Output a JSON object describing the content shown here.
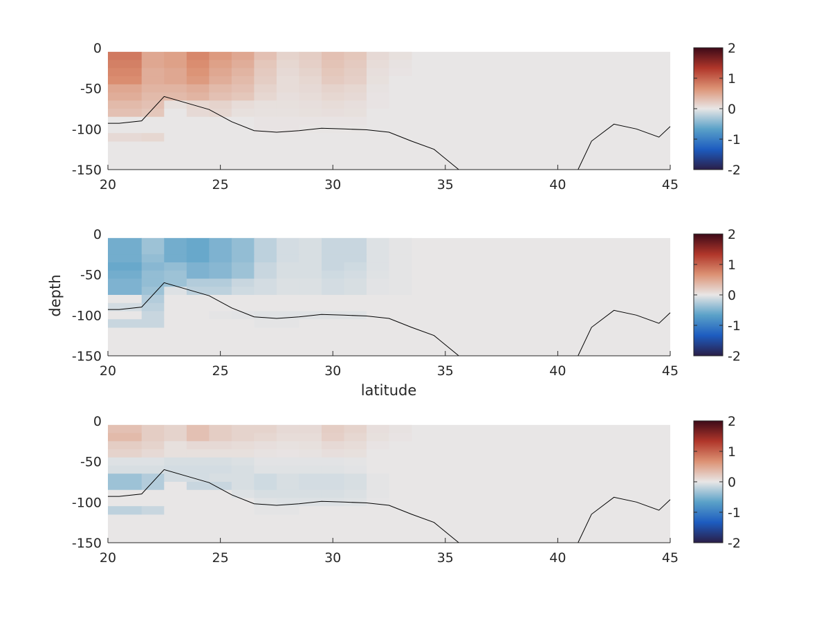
{
  "figure": {
    "xlabel": "latitude",
    "ylabel": "depth"
  },
  "colors": {
    "colormap_stops": [
      "#2a1e48",
      "#1d5cc0",
      "#5aa1c8",
      "#e8e6e6",
      "#dc9274",
      "#b0362a",
      "#3d0a18"
    ],
    "bathymetry_line": "#000000",
    "axis_text": "#262626"
  },
  "chart_data": [
    {
      "type": "heatmap",
      "title": "",
      "xlabel": "",
      "ylabel": "",
      "xlim": [
        20,
        45
      ],
      "ylim": [
        -150,
        0
      ],
      "x_ticks": [
        "20",
        "25",
        "30",
        "35",
        "40",
        "45"
      ],
      "y_ticks": [
        "0",
        "-50",
        "-100",
        "-150"
      ],
      "colorbar": {
        "range": [
          -2,
          2
        ],
        "ticks": [
          "2",
          "1",
          "0",
          "-1",
          "-2"
        ]
      },
      "grid": false,
      "lat_edges": [
        19.5,
        21.5,
        22.5,
        23.5,
        24.5,
        25.5,
        26.5,
        27.5,
        28.5,
        29.5,
        30.5,
        31.5,
        32.5,
        33.5
      ],
      "depth_edges": [
        -5,
        -15,
        -25,
        -35,
        -45,
        -55,
        -65,
        -75,
        -85,
        -95,
        -105,
        -115
      ],
      "values": [
        [
          0.85,
          0.5,
          0.55,
          0.75,
          0.6,
          0.5,
          0.3,
          0.15,
          0.2,
          0.3,
          0.25,
          0.1,
          0.05
        ],
        [
          0.8,
          0.5,
          0.55,
          0.7,
          0.55,
          0.45,
          0.25,
          0.12,
          0.18,
          0.28,
          0.22,
          0.08,
          0.03
        ],
        [
          0.75,
          0.45,
          0.5,
          0.65,
          0.5,
          0.4,
          0.22,
          0.1,
          0.15,
          0.25,
          0.2,
          0.06,
          0.02
        ],
        [
          0.7,
          0.45,
          0.5,
          0.6,
          0.45,
          0.35,
          0.2,
          0.08,
          0.12,
          0.22,
          0.18,
          0.05,
          0.0
        ],
        [
          0.5,
          0.4,
          0.4,
          0.45,
          0.35,
          0.3,
          0.15,
          0.08,
          0.1,
          0.15,
          0.12,
          0.03,
          0.0
        ],
        [
          0.45,
          0.35,
          0.35,
          0.4,
          0.3,
          0.25,
          0.12,
          0.06,
          0.08,
          0.12,
          0.1,
          0.02,
          0.0
        ],
        [
          0.35,
          0.3,
          0.05,
          0.12,
          0.15,
          0.08,
          0.05,
          0.05,
          0.06,
          0.08,
          0.06,
          0.02,
          0.0
        ],
        [
          0.3,
          0.25,
          0.0,
          0.1,
          0.12,
          0.05,
          0.04,
          0.04,
          0.05,
          0.06,
          0.05,
          0.0,
          0.0
        ],
        [
          0.0,
          0.0,
          0.0,
          0.0,
          0.0,
          0.0,
          0.02,
          0.02,
          0.02,
          0.02,
          0.02,
          0.0,
          0.0
        ],
        [
          0.0,
          0.0,
          0.0,
          0.0,
          0.0,
          0.0,
          0.02,
          0.02,
          0.01,
          0.01,
          0.01,
          0.0,
          0.0
        ],
        [
          0.1,
          0.12,
          0.0,
          0.0,
          0.0,
          0.0,
          0.0,
          0.0,
          0.0,
          0.0,
          0.0,
          0.0,
          0.0
        ]
      ],
      "bathymetry": {
        "lat": [
          20,
          20.5,
          21.5,
          22.5,
          23.5,
          24.5,
          25.5,
          26.5,
          27.5,
          28.5,
          29.5,
          30.5,
          31.5,
          32.5,
          33.5,
          34.5,
          35.6,
          40.9,
          41.5,
          42.5,
          43.5,
          44.5,
          45
        ],
        "depth": [
          -93,
          -93,
          -90,
          -60,
          -68,
          -76,
          -91,
          -102,
          -104,
          -102,
          -99,
          -100,
          -101,
          -104,
          -115,
          -125,
          -150,
          -150,
          -115,
          -94,
          -100,
          -110,
          -97
        ]
      }
    },
    {
      "type": "heatmap",
      "title": "",
      "xlabel": "latitude",
      "ylabel": "depth",
      "xlim": [
        20,
        45
      ],
      "ylim": [
        -150,
        0
      ],
      "x_ticks": [
        "20",
        "25",
        "30",
        "35",
        "40",
        "45"
      ],
      "y_ticks": [
        "0",
        "-50",
        "-100",
        "-150"
      ],
      "colorbar": {
        "range": [
          -2,
          2
        ],
        "ticks": [
          "2",
          "1",
          "0",
          "-1",
          "-2"
        ]
      },
      "grid": false,
      "lat_edges": [
        19.5,
        21.5,
        22.5,
        23.5,
        24.5,
        25.5,
        26.5,
        27.5,
        28.5,
        29.5,
        30.5,
        31.5,
        32.5,
        33.5
      ],
      "depth_edges": [
        -5,
        -15,
        -25,
        -35,
        -45,
        -55,
        -65,
        -75,
        -85,
        -95,
        -105,
        -115
      ],
      "values": [
        [
          -0.55,
          -0.35,
          -0.55,
          -0.6,
          -0.5,
          -0.4,
          -0.2,
          -0.1,
          -0.08,
          -0.15,
          -0.15,
          -0.05,
          -0.02
        ],
        [
          -0.55,
          -0.35,
          -0.55,
          -0.6,
          -0.5,
          -0.4,
          -0.2,
          -0.1,
          -0.08,
          -0.15,
          -0.15,
          -0.05,
          -0.02
        ],
        [
          -0.55,
          -0.4,
          -0.55,
          -0.6,
          -0.5,
          -0.4,
          -0.2,
          -0.1,
          -0.08,
          -0.15,
          -0.15,
          -0.05,
          -0.02
        ],
        [
          -0.6,
          -0.45,
          -0.4,
          -0.5,
          -0.45,
          -0.35,
          -0.15,
          -0.08,
          -0.08,
          -0.15,
          -0.12,
          -0.05,
          -0.02
        ],
        [
          -0.55,
          -0.4,
          -0.35,
          -0.5,
          -0.45,
          -0.35,
          -0.15,
          -0.08,
          -0.08,
          -0.12,
          -0.1,
          -0.04,
          -0.02
        ],
        [
          -0.5,
          -0.4,
          -0.35,
          -0.25,
          -0.25,
          -0.15,
          -0.1,
          -0.06,
          -0.06,
          -0.1,
          -0.08,
          -0.03,
          -0.02
        ],
        [
          -0.5,
          -0.35,
          -0.05,
          -0.2,
          -0.2,
          -0.12,
          -0.1,
          -0.06,
          -0.06,
          -0.1,
          -0.08,
          -0.03,
          -0.02
        ],
        [
          0.0,
          -0.25,
          0.0,
          0.0,
          0.0,
          0.0,
          0.0,
          0.0,
          0.0,
          0.0,
          0.0,
          0.0,
          0.0
        ],
        [
          -0.1,
          -0.2,
          0.0,
          0.0,
          0.0,
          0.0,
          0.0,
          0.0,
          0.0,
          0.0,
          0.0,
          0.0,
          0.0
        ],
        [
          0.0,
          -0.15,
          0.0,
          0.0,
          -0.02,
          -0.03,
          -0.04,
          -0.04,
          -0.04,
          -0.04,
          -0.04,
          0.0,
          0.0
        ],
        [
          -0.15,
          -0.15,
          0.0,
          0.0,
          0.0,
          0.0,
          -0.02,
          -0.02,
          0.0,
          0.0,
          0.0,
          0.0,
          0.0
        ]
      ],
      "bathymetry": {
        "lat": [
          20,
          20.5,
          21.5,
          22.5,
          23.5,
          24.5,
          25.5,
          26.5,
          27.5,
          28.5,
          29.5,
          30.5,
          31.5,
          32.5,
          33.5,
          34.5,
          35.6,
          40.9,
          41.5,
          42.5,
          43.5,
          44.5,
          45
        ],
        "depth": [
          -93,
          -93,
          -90,
          -60,
          -68,
          -76,
          -91,
          -102,
          -104,
          -102,
          -99,
          -100,
          -101,
          -104,
          -115,
          -125,
          -150,
          -150,
          -115,
          -94,
          -100,
          -110,
          -97
        ]
      }
    },
    {
      "type": "heatmap",
      "title": "",
      "xlabel": "",
      "ylabel": "",
      "xlim": [
        20,
        45
      ],
      "ylim": [
        -150,
        0
      ],
      "x_ticks": [
        "20",
        "25",
        "30",
        "35",
        "40",
        "45"
      ],
      "y_ticks": [
        "0",
        "-50",
        "-100",
        "-150"
      ],
      "colorbar": {
        "range": [
          -2,
          2
        ],
        "ticks": [
          "2",
          "1",
          "0",
          "-1",
          "-2"
        ]
      },
      "grid": false,
      "lat_edges": [
        19.5,
        21.5,
        22.5,
        23.5,
        24.5,
        25.5,
        26.5,
        27.5,
        28.5,
        29.5,
        30.5,
        31.5,
        32.5,
        33.5
      ],
      "depth_edges": [
        -5,
        -15,
        -25,
        -35,
        -45,
        -55,
        -65,
        -75,
        -85,
        -95,
        -105,
        -115
      ],
      "values": [
        [
          0.3,
          0.2,
          0.15,
          0.3,
          0.2,
          0.15,
          0.15,
          0.1,
          0.1,
          0.2,
          0.15,
          0.06,
          0.03
        ],
        [
          0.35,
          0.2,
          0.15,
          0.3,
          0.2,
          0.15,
          0.12,
          0.08,
          0.08,
          0.18,
          0.12,
          0.05,
          0.02
        ],
        [
          0.2,
          0.15,
          0.05,
          0.1,
          0.1,
          0.08,
          0.06,
          0.04,
          0.05,
          0.1,
          0.08,
          0.02,
          0.0
        ],
        [
          0.15,
          0.1,
          0.05,
          0.05,
          0.05,
          0.05,
          0.03,
          0.02,
          0.03,
          0.06,
          0.05,
          0.0,
          0.0
        ],
        [
          -0.05,
          -0.05,
          -0.08,
          -0.08,
          -0.08,
          -0.06,
          -0.03,
          -0.03,
          -0.03,
          -0.03,
          -0.02,
          0.0,
          0.0
        ],
        [
          -0.08,
          -0.08,
          -0.1,
          -0.1,
          -0.1,
          -0.08,
          -0.04,
          -0.04,
          -0.04,
          -0.04,
          -0.03,
          0.0,
          0.0
        ],
        [
          -0.35,
          -0.25,
          -0.1,
          -0.1,
          -0.08,
          -0.08,
          -0.12,
          -0.08,
          -0.1,
          -0.1,
          -0.08,
          -0.02,
          0.0
        ],
        [
          -0.35,
          -0.25,
          0.0,
          -0.15,
          -0.15,
          -0.08,
          -0.12,
          -0.08,
          -0.1,
          -0.1,
          -0.08,
          -0.02,
          0.0
        ],
        [
          0.0,
          0.0,
          0.0,
          0.0,
          0.0,
          -0.05,
          -0.08,
          -0.08,
          -0.08,
          -0.08,
          -0.06,
          -0.02,
          0.0
        ],
        [
          0.0,
          0.0,
          0.0,
          0.0,
          0.0,
          0.0,
          -0.04,
          -0.05,
          -0.05,
          -0.05,
          -0.04,
          -0.01,
          0.0
        ],
        [
          -0.2,
          -0.15,
          0.0,
          0.0,
          0.0,
          0.0,
          -0.02,
          -0.02,
          0.0,
          0.0,
          0.0,
          0.0,
          0.0
        ]
      ],
      "bathymetry": {
        "lat": [
          20,
          20.5,
          21.5,
          22.5,
          23.5,
          24.5,
          25.5,
          26.5,
          27.5,
          28.5,
          29.5,
          30.5,
          31.5,
          32.5,
          33.5,
          34.5,
          35.6,
          40.9,
          41.5,
          42.5,
          43.5,
          44.5,
          45
        ],
        "depth": [
          -93,
          -93,
          -90,
          -60,
          -68,
          -76,
          -91,
          -102,
          -104,
          -102,
          -99,
          -100,
          -101,
          -104,
          -115,
          -125,
          -150,
          -150,
          -115,
          -94,
          -100,
          -110,
          -97
        ]
      }
    }
  ]
}
